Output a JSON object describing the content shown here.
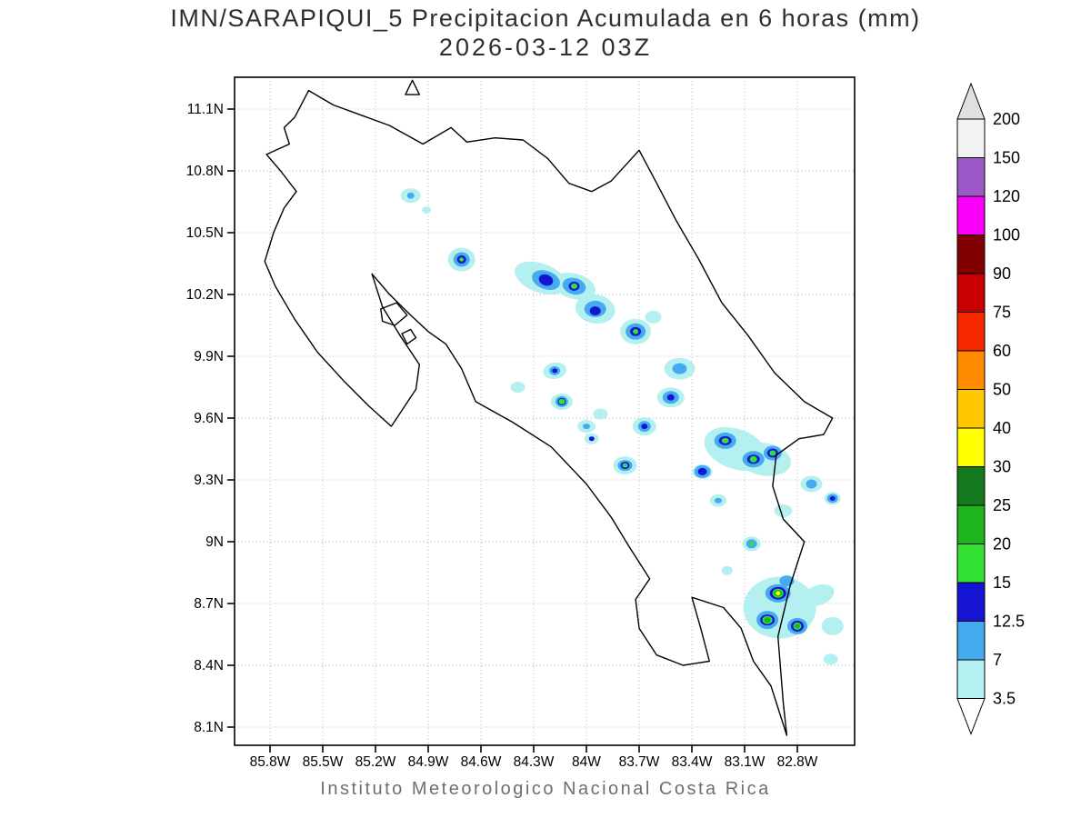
{
  "title": {
    "line1": "IMN/SARAPIQUI_5 Precipitacion Acumulada en 6 horas (mm)",
    "line2": "2026-03-12 03Z"
  },
  "footer": {
    "text": "Instituto Meteorologico Nacional Costa Rica"
  },
  "colors": {
    "background": "#ffffff",
    "title_text": "#2e2e2e",
    "footer_text": "#6f6f6f",
    "coastline": "#000000",
    "grid_dots": "#b5b5b5",
    "axis_text": "#000000"
  },
  "axes": {
    "lat_ticks": [
      {
        "label": "11.1N",
        "value": 11.1
      },
      {
        "label": "10.8N",
        "value": 10.8
      },
      {
        "label": "10.5N",
        "value": 10.5
      },
      {
        "label": "10.2N",
        "value": 10.2
      },
      {
        "label": "9.9N",
        "value": 9.9
      },
      {
        "label": "9.6N",
        "value": 9.6
      },
      {
        "label": "9.3N",
        "value": 9.3
      },
      {
        "label": "9N",
        "value": 9.0
      },
      {
        "label": "8.7N",
        "value": 8.7
      },
      {
        "label": "8.4N",
        "value": 8.4
      },
      {
        "label": "8.1N",
        "value": 8.1
      }
    ],
    "lon_ticks": [
      {
        "label": "85.8W",
        "value": 85.8
      },
      {
        "label": "85.5W",
        "value": 85.5
      },
      {
        "label": "85.2W",
        "value": 85.2
      },
      {
        "label": "84.9W",
        "value": 84.9
      },
      {
        "label": "84.6W",
        "value": 84.6
      },
      {
        "label": "84.3W",
        "value": 84.3
      },
      {
        "label": "84W",
        "value": 84.0
      },
      {
        "label": "83.7W",
        "value": 83.7
      },
      {
        "label": "83.4W",
        "value": 83.4
      },
      {
        "label": "83.1W",
        "value": 83.1
      },
      {
        "label": "82.8W",
        "value": 82.8
      }
    ]
  },
  "colorbar": {
    "labels_top_to_bottom": [
      "200",
      "150",
      "120",
      "100",
      "90",
      "75",
      "60",
      "50",
      "40",
      "30",
      "25",
      "20",
      "15",
      "12.5",
      "7",
      "3.5"
    ],
    "cell_colors_top_to_bottom": [
      "#f2f2f2",
      "#9b59c8",
      "#fa00fa",
      "#820000",
      "#c80000",
      "#f52800",
      "#ff8c00",
      "#ffc800",
      "#ffff00",
      "#14781e",
      "#1eb41e",
      "#32e132",
      "#1414d2",
      "#46aaf0",
      "#b4f0f0"
    ],
    "arrow_top_color": "#e0e0e0",
    "arrow_bottom_color": "#ffffff"
  },
  "map": {
    "coastline": [
      [
        85.66,
        11.06
      ],
      [
        85.58,
        11.19
      ],
      [
        85.44,
        11.12
      ],
      [
        85.28,
        11.07
      ],
      [
        85.12,
        11.02
      ],
      [
        84.93,
        10.93
      ],
      [
        84.77,
        11.01
      ],
      [
        84.68,
        10.94
      ],
      [
        84.52,
        10.96
      ],
      [
        84.36,
        10.95
      ],
      [
        84.22,
        10.86
      ],
      [
        84.1,
        10.74
      ],
      [
        83.97,
        10.7
      ],
      [
        83.86,
        10.75
      ],
      [
        83.7,
        10.9
      ],
      [
        83.6,
        10.74
      ],
      [
        83.49,
        10.56
      ],
      [
        83.36,
        10.37
      ],
      [
        83.23,
        10.16
      ],
      [
        83.08,
        10.0
      ],
      [
        82.93,
        9.82
      ],
      [
        82.76,
        9.68
      ],
      [
        82.6,
        9.6
      ],
      [
        82.65,
        9.52
      ],
      [
        82.79,
        9.5
      ],
      [
        82.92,
        9.42
      ],
      [
        82.94,
        9.27
      ],
      [
        82.88,
        9.11
      ],
      [
        82.76,
        9.0
      ],
      [
        82.84,
        8.79
      ],
      [
        82.91,
        8.54
      ],
      [
        82.88,
        8.22
      ],
      [
        82.86,
        8.06
      ],
      [
        82.95,
        8.3
      ],
      [
        83.05,
        8.42
      ],
      [
        83.12,
        8.58
      ],
      [
        83.22,
        8.68
      ],
      [
        83.4,
        8.73
      ],
      [
        83.35,
        8.58
      ],
      [
        83.3,
        8.42
      ],
      [
        83.45,
        8.4
      ],
      [
        83.6,
        8.45
      ],
      [
        83.7,
        8.58
      ],
      [
        83.72,
        8.72
      ],
      [
        83.64,
        8.82
      ],
      [
        83.76,
        8.98
      ],
      [
        83.86,
        9.12
      ],
      [
        84.0,
        9.28
      ],
      [
        84.2,
        9.46
      ],
      [
        84.42,
        9.58
      ],
      [
        84.63,
        9.68
      ],
      [
        84.71,
        9.84
      ],
      [
        84.8,
        9.96
      ],
      [
        84.9,
        10.02
      ],
      [
        85.0,
        10.1
      ],
      [
        85.12,
        10.2
      ],
      [
        85.22,
        10.3
      ],
      [
        85.16,
        10.14
      ],
      [
        85.06,
        10.0
      ],
      [
        84.95,
        9.86
      ],
      [
        84.97,
        9.74
      ],
      [
        85.11,
        9.56
      ],
      [
        85.24,
        9.66
      ],
      [
        85.38,
        9.78
      ],
      [
        85.53,
        9.92
      ],
      [
        85.66,
        10.08
      ],
      [
        85.77,
        10.24
      ],
      [
        85.83,
        10.36
      ],
      [
        85.78,
        10.5
      ],
      [
        85.72,
        10.62
      ],
      [
        85.65,
        10.7
      ],
      [
        85.74,
        10.8
      ],
      [
        85.82,
        10.88
      ],
      [
        85.69,
        10.93
      ],
      [
        85.72,
        11.01
      ]
    ],
    "islands": [
      {
        "name": "isla-chira-outline",
        "points": [
          [
            85.17,
            10.13
          ],
          [
            85.08,
            10.16
          ],
          [
            85.02,
            10.1
          ],
          [
            85.09,
            10.05
          ],
          [
            85.16,
            10.07
          ]
        ]
      },
      {
        "name": "small-island-outline",
        "points": [
          [
            85.05,
            10.01
          ],
          [
            85.0,
            10.03
          ],
          [
            84.97,
            9.99
          ],
          [
            85.02,
            9.96
          ]
        ]
      },
      {
        "name": "island-triangle-marker",
        "points": [
          [
            85.03,
            11.17
          ],
          [
            84.99,
            11.24
          ],
          [
            84.95,
            11.17
          ]
        ]
      }
    ]
  },
  "chart_data": {
    "type": "heatmap",
    "title": "IMN/SARAPIQUI_5 Precipitacion Acumulada en 6 horas (mm)",
    "valid_time": "2026-03-12 03Z",
    "units": "mm",
    "xlabel": "longitude (W)",
    "ylabel": "latitude (N)",
    "lon_range_w": [
      86.0,
      82.47
    ],
    "lat_range_n": [
      8.01,
      11.25
    ],
    "grid": true,
    "legend_position": "right-colorbar",
    "levels_mm": [
      3.5,
      7,
      12.5,
      15,
      20,
      25,
      30,
      40,
      50,
      60,
      75,
      90,
      100,
      120,
      150,
      200
    ],
    "level_colors": [
      "#b4f0f0",
      "#46aaf0",
      "#1414d2",
      "#32e132",
      "#1eb41e",
      "#14781e",
      "#ffff00",
      "#ffc800",
      "#ff8c00",
      "#f52800",
      "#c80000",
      "#820000",
      "#fa00fa",
      "#9b59c8",
      "#f2f2f2"
    ],
    "cells_format": [
      "lon_w",
      "lat_n",
      "rx_px",
      "ry_px",
      "rotation_deg",
      "level_index"
    ],
    "cells": [
      [
        85.0,
        10.68,
        11,
        8,
        0,
        1
      ],
      [
        84.91,
        10.61,
        5,
        4,
        0,
        1
      ],
      [
        84.71,
        10.37,
        15,
        13,
        0,
        1
      ],
      [
        84.26,
        10.28,
        30,
        16,
        20,
        1
      ],
      [
        84.07,
        10.24,
        24,
        14,
        15,
        1
      ],
      [
        83.95,
        10.13,
        22,
        16,
        10,
        1
      ],
      [
        83.72,
        10.02,
        17,
        14,
        0,
        1
      ],
      [
        83.62,
        10.09,
        9,
        7,
        0,
        1
      ],
      [
        84.18,
        9.83,
        13,
        9,
        -10,
        1
      ],
      [
        84.39,
        9.75,
        8,
        6,
        0,
        1
      ],
      [
        84.14,
        9.68,
        12,
        9,
        0,
        1
      ],
      [
        84.0,
        9.56,
        10,
        7,
        0,
        1
      ],
      [
        83.92,
        9.62,
        8,
        6,
        0,
        1
      ],
      [
        83.47,
        9.84,
        17,
        12,
        0,
        1
      ],
      [
        83.52,
        9.7,
        15,
        11,
        0,
        1
      ],
      [
        83.67,
        9.56,
        13,
        10,
        0,
        1
      ],
      [
        83.78,
        9.37,
        13,
        10,
        0,
        1
      ],
      [
        83.97,
        9.5,
        8,
        6,
        0,
        1
      ],
      [
        83.15,
        9.45,
        36,
        22,
        20,
        1
      ],
      [
        82.99,
        9.4,
        30,
        18,
        10,
        1
      ],
      [
        83.34,
        9.34,
        11,
        8,
        0,
        1
      ],
      [
        83.25,
        9.2,
        9,
        7,
        0,
        1
      ],
      [
        82.88,
        9.15,
        10,
        7,
        0,
        1
      ],
      [
        82.72,
        9.28,
        12,
        9,
        0,
        1
      ],
      [
        82.6,
        9.21,
        9,
        7,
        0,
        1
      ],
      [
        83.06,
        8.99,
        10,
        8,
        0,
        1
      ],
      [
        82.9,
        8.68,
        40,
        34,
        0,
        1
      ],
      [
        82.68,
        8.74,
        18,
        11,
        -20,
        1
      ],
      [
        82.6,
        8.59,
        12,
        10,
        0,
        1
      ],
      [
        82.61,
        8.43,
        8,
        6,
        0,
        1
      ],
      [
        83.2,
        8.86,
        6,
        5,
        0,
        1
      ],
      [
        85.0,
        10.68,
        4,
        3.5,
        0,
        2
      ],
      [
        84.71,
        10.37,
        9,
        8,
        0,
        2
      ],
      [
        84.23,
        10.27,
        16,
        10,
        20,
        2
      ],
      [
        84.07,
        10.24,
        13,
        9,
        15,
        2
      ],
      [
        83.95,
        10.13,
        12,
        9,
        0,
        2
      ],
      [
        83.72,
        10.02,
        11,
        9,
        0,
        2
      ],
      [
        84.18,
        9.83,
        6,
        5,
        0,
        2
      ],
      [
        84.14,
        9.68,
        7,
        6,
        0,
        2
      ],
      [
        83.47,
        9.84,
        8,
        6,
        0,
        2
      ],
      [
        83.52,
        9.7,
        9,
        7,
        0,
        2
      ],
      [
        83.67,
        9.56,
        7,
        6,
        0,
        2
      ],
      [
        83.78,
        9.37,
        8,
        6,
        0,
        2
      ],
      [
        84.0,
        9.56,
        4,
        3,
        0,
        2
      ],
      [
        83.21,
        9.49,
        12,
        9,
        0,
        2
      ],
      [
        83.05,
        9.4,
        12,
        9,
        0,
        2
      ],
      [
        82.94,
        9.43,
        10,
        8,
        0,
        2
      ],
      [
        83.34,
        9.34,
        9,
        7,
        0,
        2
      ],
      [
        82.72,
        9.28,
        6,
        5,
        0,
        2
      ],
      [
        82.6,
        9.21,
        6,
        5,
        0,
        2
      ],
      [
        83.06,
        8.99,
        6,
        5,
        0,
        2
      ],
      [
        82.91,
        8.75,
        14,
        10,
        0,
        2
      ],
      [
        82.97,
        8.62,
        12,
        10,
        0,
        2
      ],
      [
        82.8,
        8.59,
        11,
        9,
        0,
        2
      ],
      [
        82.86,
        8.81,
        8,
        6,
        0,
        2
      ],
      [
        83.25,
        9.2,
        4,
        3,
        0,
        2
      ],
      [
        84.71,
        10.37,
        5,
        4.5,
        0,
        3
      ],
      [
        84.23,
        10.27,
        8,
        6,
        20,
        3
      ],
      [
        84.07,
        10.24,
        6,
        5,
        0,
        3
      ],
      [
        83.95,
        10.12,
        6,
        5,
        0,
        3
      ],
      [
        83.72,
        10.02,
        6,
        5,
        0,
        3
      ],
      [
        84.18,
        9.83,
        3,
        2.5,
        0,
        3
      ],
      [
        84.14,
        9.68,
        4.5,
        4,
        0,
        3
      ],
      [
        83.52,
        9.7,
        4,
        3.5,
        0,
        3
      ],
      [
        83.67,
        9.56,
        3.5,
        3,
        0,
        3
      ],
      [
        83.78,
        9.37,
        5,
        4,
        0,
        3
      ],
      [
        83.97,
        9.5,
        3,
        2.5,
        0,
        3
      ],
      [
        83.21,
        9.49,
        7,
        5,
        0,
        3
      ],
      [
        83.05,
        9.4,
        7,
        5,
        0,
        3
      ],
      [
        82.94,
        9.43,
        6,
        5,
        0,
        3
      ],
      [
        83.34,
        9.34,
        5,
        4,
        0,
        3
      ],
      [
        82.6,
        9.21,
        3,
        2.5,
        0,
        3
      ],
      [
        82.91,
        8.75,
        9,
        7,
        0,
        3
      ],
      [
        82.97,
        8.62,
        8,
        6,
        0,
        3
      ],
      [
        82.8,
        8.59,
        7,
        6,
        0,
        3
      ],
      [
        84.71,
        10.37,
        2.5,
        2.2,
        0,
        4
      ],
      [
        84.07,
        10.24,
        3.5,
        3,
        0,
        4
      ],
      [
        83.72,
        10.02,
        3,
        2.8,
        0,
        4
      ],
      [
        84.14,
        9.68,
        3.5,
        3,
        0,
        4
      ],
      [
        83.78,
        9.37,
        3,
        2.5,
        0,
        4
      ],
      [
        83.21,
        9.49,
        4,
        3,
        0,
        4
      ],
      [
        83.05,
        9.4,
        4,
        3.5,
        0,
        4
      ],
      [
        82.94,
        9.43,
        3.5,
        3,
        0,
        4
      ],
      [
        83.06,
        8.99,
        2.5,
        2.2,
        0,
        4
      ],
      [
        82.91,
        8.75,
        6,
        5,
        0,
        4
      ],
      [
        82.97,
        8.62,
        5.5,
        4.5,
        0,
        4
      ],
      [
        82.8,
        8.59,
        4.5,
        4,
        0,
        4
      ],
      [
        82.91,
        8.75,
        4.5,
        3.5,
        0,
        5
      ],
      [
        82.97,
        8.62,
        3.5,
        3,
        0,
        5
      ],
      [
        82.8,
        8.59,
        3,
        2.5,
        0,
        5
      ],
      [
        82.91,
        8.75,
        2.6,
        2.2,
        0,
        7
      ]
    ]
  }
}
